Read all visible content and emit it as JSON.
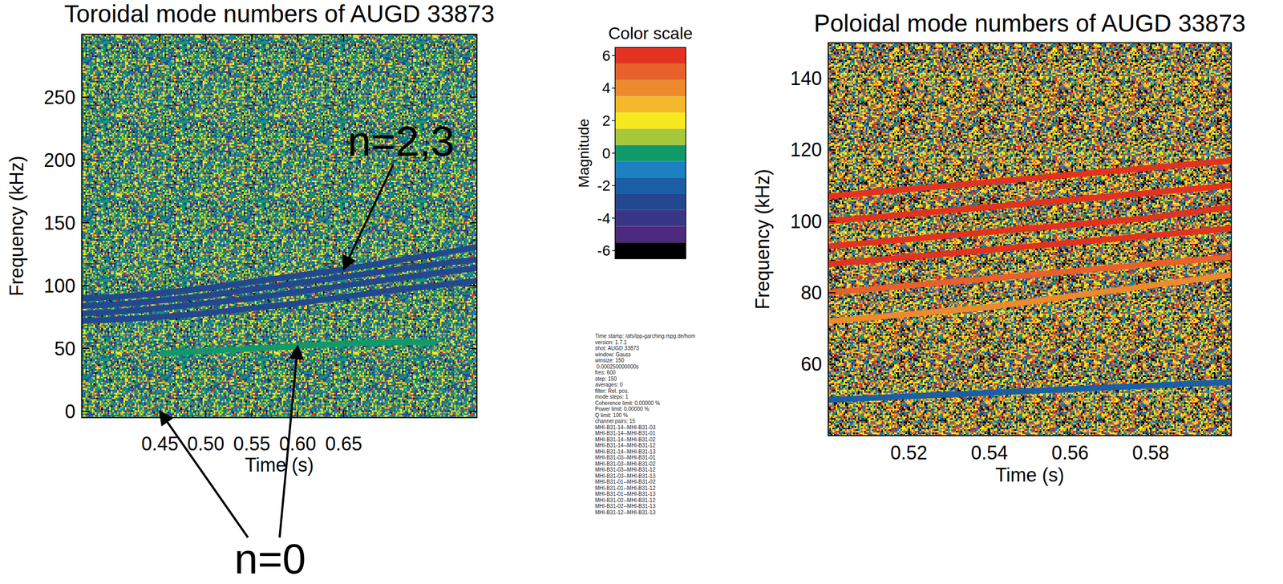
{
  "chart_data": [
    {
      "type": "line",
      "title": "Toroidal mode numbers of AUGD 33873",
      "x_label": "Time (s)",
      "y_label": "Frequency (kHz)",
      "xlim": [
        0.365,
        0.795
      ],
      "xticks": [
        0.45,
        {
          "value": 0.5,
          "label": "0.50"
        },
        0.55,
        {
          "value": 0.6,
          "label": "0.60"
        },
        0.65
      ],
      "ylim": [
        -5,
        300
      ],
      "yticks": [
        0,
        50,
        100,
        150,
        200,
        250
      ],
      "x": [
        0.365,
        0.4,
        0.45,
        0.5,
        0.55,
        0.6,
        0.65,
        0.7,
        0.75,
        0.795
      ],
      "series": [
        {
          "color": "#23488f",
          "values": [
            72,
            73,
            75,
            78,
            82,
            86,
            91,
            96,
            100,
            104
          ]
        },
        {
          "color": "#23488f",
          "values": [
            78,
            79,
            82,
            86,
            90,
            95,
            100,
            105,
            110,
            114
          ]
        },
        {
          "color": "#23488f",
          "values": [
            84,
            85,
            88,
            92,
            97,
            102,
            107,
            112,
            117,
            121
          ]
        },
        {
          "color": "#23488f",
          "values": [
            90,
            91,
            94,
            98,
            103,
            108,
            113,
            119,
            125,
            131
          ]
        },
        {
          "color": "#12996a",
          "values": [
            null,
            null,
            46,
            48,
            50,
            52,
            54,
            55,
            55,
            null
          ]
        }
      ],
      "annotations": [
        "n=2,3",
        "n=0"
      ]
    },
    {
      "type": "line",
      "title": "Poloidal mode numbers of AUGD 33873",
      "x_label": "Time (s)",
      "y_label": "Frequency (kHz)",
      "xlim": [
        0.5,
        0.6
      ],
      "xticks": [
        0.52,
        0.54,
        0.56,
        0.58
      ],
      "ylim": [
        40,
        150
      ],
      "yticks": [
        60,
        80,
        100,
        120,
        140
      ],
      "x": [
        0.5,
        0.52,
        0.54,
        0.56,
        0.58,
        0.6
      ],
      "series": [
        {
          "color": "#1b5ea5",
          "values": [
            50,
            51,
            52,
            53,
            54,
            55
          ]
        },
        {
          "color": "#ec8a2d",
          "values": [
            72,
            74,
            76,
            79,
            82,
            85
          ]
        },
        {
          "color": "#e8612a",
          "values": [
            80,
            82,
            84,
            86,
            88,
            90
          ]
        },
        {
          "color": "#e3321f",
          "values": [
            88,
            90,
            92,
            94,
            96,
            98
          ]
        },
        {
          "color": "#e3321f",
          "values": [
            93,
            95,
            97,
            99,
            101,
            104
          ]
        },
        {
          "color": "#e3321f",
          "values": [
            100,
            102,
            104,
            106,
            108,
            110
          ]
        },
        {
          "color": "#e3321f",
          "values": [
            107,
            109,
            111,
            113,
            115,
            117
          ]
        }
      ]
    }
  ],
  "color_scale": {
    "title": "Color scale",
    "label": "Magnitude",
    "range": [
      -6.5,
      6.5
    ],
    "ticks": [
      -6,
      -4,
      -2,
      0,
      2,
      4,
      6
    ],
    "levels": [
      -6,
      -5,
      -4,
      -3,
      -2,
      -1,
      0,
      1,
      2,
      3,
      4,
      5,
      6
    ],
    "colors": [
      "#000000",
      "#4b2a7f",
      "#3a3687",
      "#23488f",
      "#1b5ea5",
      "#1d80c1",
      "#12996a",
      "#a8c83c",
      "#f7e920",
      "#f4b92b",
      "#ec8a2d",
      "#e8612a",
      "#e3321f"
    ]
  },
  "info_text": [
    "Time stamp: /afs/ipp-garching.mpg.de/hom",
    "version: 1.7.1",
    "shot: AUGD 33873",
    "window: Gauss",
    "winsize: 150",
    " 0.000250000000s",
    "fres: 600",
    "step: 150",
    "averages: 0",
    "filter: Rel. pos.",
    "mode steps: 1",
    "Coherence limit: 0.00000 %",
    "Power limit: 0.00000 %",
    "Q limit: 100 %",
    "channel pairs: 15",
    "MHI-B31-14--MHI-B31-03",
    "MHI-B31-14--MHI-B31-01",
    "MHI-B31-14--MHI-B31-02",
    "MHI-B31-14--MHI-B31-12",
    "MHI-B31-14--MHI-B31-13",
    "MHI-B31-03--MHI-B31-01",
    "MHI-B31-03--MHI-B31-02",
    "MHI-B31-03--MHI-B31-12",
    "MHI-B31-03--MHI-B31-13",
    "MHI-B31-01--MHI-B31-02",
    "MHI-B31-01--MHI-B31-12",
    "MHI-B31-01--MHI-B31-13",
    "MHI-B31-02--MHI-B31-12",
    "MHI-B31-02--MHI-B31-13",
    "MHI-B31-12--MHI-B31-13"
  ]
}
